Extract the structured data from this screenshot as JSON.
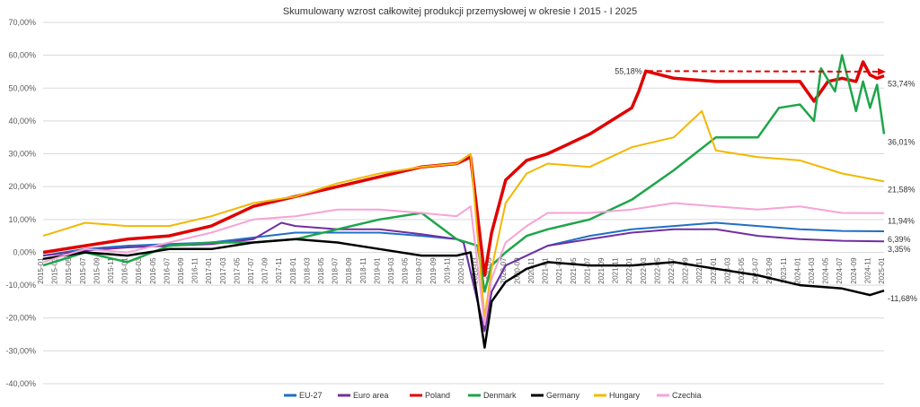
{
  "chart_data": {
    "type": "line",
    "title": "Skumulowany wzrost całkowitej produkcji przemysłowej w okresie I 2015 - I 2025",
    "xlabel": "",
    "ylabel": "",
    "ylim": [
      -40,
      70
    ],
    "y_ticks": [
      "70,00%",
      "60,00%",
      "50,00%",
      "40,00%",
      "30,00%",
      "20,00%",
      "10,00%",
      "0,00%",
      "-10,00%",
      "-20,00%",
      "-30,00%",
      "-40,00%"
    ],
    "y_tick_values": [
      70,
      60,
      50,
      40,
      30,
      20,
      10,
      0,
      -10,
      -20,
      -30,
      -40
    ],
    "x_range": [
      "2015-01",
      "2025-01"
    ],
    "x_tick_labels": [
      "2015-01",
      "2015-03",
      "2015-05",
      "2015-07",
      "2015-09",
      "2015-11",
      "2016-01",
      "2016-03",
      "2016-05",
      "2016-07",
      "2016-09",
      "2016-11",
      "2017-01",
      "2017-03",
      "2017-05",
      "2017-07",
      "2017-09",
      "2017-11",
      "2018-01",
      "2018-03",
      "2018-05",
      "2018-07",
      "2018-09",
      "2018-11",
      "2019-01",
      "2019-03",
      "2019-05",
      "2019-07",
      "2019-09",
      "2019-11",
      "2020-01",
      "2020-03",
      "2020-05",
      "2020-07",
      "2020-09",
      "2020-11",
      "2021-01",
      "2021-03",
      "2021-05",
      "2021-07",
      "2021-09",
      "2021-11",
      "2022-01",
      "2022-03",
      "2022-05",
      "2022-07",
      "2022-09",
      "2022-11",
      "2023-01",
      "2023-03",
      "2023-05",
      "2023-07",
      "2023-09",
      "2023-11",
      "2024-01",
      "2024-03",
      "2024-05",
      "2024-07",
      "2024-09",
      "2024-11",
      "2025-01"
    ],
    "grid": true,
    "legend_position": "bottom",
    "series": [
      {
        "name": "EU-27",
        "color": "#1f6fc5",
        "end_label": "6,39%",
        "points": [
          [
            "2015-01",
            -1
          ],
          [
            "2015-07",
            1
          ],
          [
            "2016-01",
            2
          ],
          [
            "2016-07",
            2.5
          ],
          [
            "2017-01",
            3
          ],
          [
            "2017-07",
            4.5
          ],
          [
            "2018-01",
            6
          ],
          [
            "2018-07",
            6
          ],
          [
            "2019-01",
            6
          ],
          [
            "2019-07",
            5
          ],
          [
            "2019-12",
            4
          ],
          [
            "2020-01",
            3
          ],
          [
            "2020-04",
            -24
          ],
          [
            "2020-05",
            -12
          ],
          [
            "2020-07",
            -4
          ],
          [
            "2020-10",
            -1
          ],
          [
            "2021-01",
            2
          ],
          [
            "2021-07",
            5
          ],
          [
            "2022-01",
            7
          ],
          [
            "2022-07",
            8
          ],
          [
            "2023-01",
            9
          ],
          [
            "2023-07",
            8
          ],
          [
            "2024-01",
            7
          ],
          [
            "2024-07",
            6.5
          ],
          [
            "2025-01",
            6.39
          ]
        ]
      },
      {
        "name": "Euro area",
        "color": "#7030a0",
        "end_label": "3,35%",
        "points": [
          [
            "2015-01",
            -1
          ],
          [
            "2015-07",
            0.5
          ],
          [
            "2016-01",
            1.5
          ],
          [
            "2016-07",
            2
          ],
          [
            "2017-01",
            2.5
          ],
          [
            "2017-07",
            4
          ],
          [
            "2017-11",
            9
          ],
          [
            "2018-01",
            8
          ],
          [
            "2018-07",
            7
          ],
          [
            "2019-01",
            7
          ],
          [
            "2019-07",
            5.5
          ],
          [
            "2019-12",
            4
          ],
          [
            "2020-01",
            3
          ],
          [
            "2020-04",
            -24
          ],
          [
            "2020-05",
            -12
          ],
          [
            "2020-07",
            -4
          ],
          [
            "2020-10",
            -1
          ],
          [
            "2021-01",
            2
          ],
          [
            "2021-07",
            4
          ],
          [
            "2022-01",
            6
          ],
          [
            "2022-07",
            7
          ],
          [
            "2023-01",
            7
          ],
          [
            "2023-07",
            5
          ],
          [
            "2024-01",
            4
          ],
          [
            "2024-07",
            3.5
          ],
          [
            "2025-01",
            3.35
          ]
        ]
      },
      {
        "name": "Poland",
        "color": "#e00000",
        "end_label": "53,74%",
        "points": [
          [
            "2015-01",
            0
          ],
          [
            "2015-07",
            2
          ],
          [
            "2016-01",
            4
          ],
          [
            "2016-07",
            5
          ],
          [
            "2017-01",
            8
          ],
          [
            "2017-07",
            14
          ],
          [
            "2018-01",
            17
          ],
          [
            "2018-07",
            20
          ],
          [
            "2019-01",
            23
          ],
          [
            "2019-07",
            26
          ],
          [
            "2019-12",
            27
          ],
          [
            "2020-02",
            29
          ],
          [
            "2020-04",
            -7
          ],
          [
            "2020-05",
            6
          ],
          [
            "2020-07",
            22
          ],
          [
            "2020-10",
            28
          ],
          [
            "2021-01",
            30
          ],
          [
            "2021-07",
            36
          ],
          [
            "2022-01",
            44
          ],
          [
            "2022-02",
            49
          ],
          [
            "2022-03",
            55.18
          ],
          [
            "2022-07",
            53
          ],
          [
            "2023-01",
            52
          ],
          [
            "2023-07",
            52
          ],
          [
            "2024-01",
            52
          ],
          [
            "2024-03",
            46
          ],
          [
            "2024-05",
            52
          ],
          [
            "2024-07",
            53
          ],
          [
            "2024-09",
            52
          ],
          [
            "2024-10",
            58
          ],
          [
            "2024-11",
            54
          ],
          [
            "2024-12",
            53
          ],
          [
            "2025-01",
            53.74
          ]
        ]
      },
      {
        "name": "Denmark",
        "color": "#1ea54a",
        "end_label": "36,01%",
        "points": [
          [
            "2015-01",
            -4
          ],
          [
            "2015-07",
            0
          ],
          [
            "2016-01",
            -3
          ],
          [
            "2016-07",
            2
          ],
          [
            "2017-01",
            3
          ],
          [
            "2017-07",
            3
          ],
          [
            "2018-01",
            4
          ],
          [
            "2018-07",
            7
          ],
          [
            "2019-01",
            10
          ],
          [
            "2019-07",
            12
          ],
          [
            "2019-12",
            4
          ],
          [
            "2020-03",
            2
          ],
          [
            "2020-04",
            -12
          ],
          [
            "2020-05",
            -4
          ],
          [
            "2020-07",
            0
          ],
          [
            "2020-10",
            5
          ],
          [
            "2021-01",
            7
          ],
          [
            "2021-07",
            10
          ],
          [
            "2022-01",
            16
          ],
          [
            "2022-07",
            25
          ],
          [
            "2022-10",
            30
          ],
          [
            "2023-01",
            35
          ],
          [
            "2023-07",
            35
          ],
          [
            "2023-10",
            44
          ],
          [
            "2024-01",
            45
          ],
          [
            "2024-03",
            40
          ],
          [
            "2024-04",
            56
          ],
          [
            "2024-06",
            49
          ],
          [
            "2024-07",
            60
          ],
          [
            "2024-09",
            43
          ],
          [
            "2024-10",
            52
          ],
          [
            "2024-11",
            44
          ],
          [
            "2024-12",
            51
          ],
          [
            "2025-01",
            36.01
          ]
        ]
      },
      {
        "name": "Germany",
        "color": "#000000",
        "end_label": "-11,68%",
        "points": [
          [
            "2015-01",
            -2
          ],
          [
            "2015-07",
            0
          ],
          [
            "2016-01",
            -1
          ],
          [
            "2016-07",
            1
          ],
          [
            "2017-01",
            1
          ],
          [
            "2017-07",
            3
          ],
          [
            "2018-01",
            4
          ],
          [
            "2018-07",
            3
          ],
          [
            "2019-01",
            1
          ],
          [
            "2019-07",
            -1
          ],
          [
            "2019-12",
            -1
          ],
          [
            "2020-02",
            0
          ],
          [
            "2020-04",
            -29
          ],
          [
            "2020-05",
            -15
          ],
          [
            "2020-07",
            -9
          ],
          [
            "2020-10",
            -5
          ],
          [
            "2021-01",
            -3
          ],
          [
            "2021-07",
            -4
          ],
          [
            "2022-01",
            -4
          ],
          [
            "2022-07",
            -3
          ],
          [
            "2023-01",
            -5
          ],
          [
            "2023-07",
            -7
          ],
          [
            "2024-01",
            -10
          ],
          [
            "2024-07",
            -11
          ],
          [
            "2024-11",
            -13
          ],
          [
            "2025-01",
            -11.68
          ]
        ]
      },
      {
        "name": "Hungary",
        "color": "#f2b800",
        "end_label": "21,58%",
        "points": [
          [
            "2015-01",
            5
          ],
          [
            "2015-07",
            9
          ],
          [
            "2016-01",
            8
          ],
          [
            "2016-07",
            8
          ],
          [
            "2017-01",
            11
          ],
          [
            "2017-07",
            15
          ],
          [
            "2018-01",
            17
          ],
          [
            "2018-07",
            21
          ],
          [
            "2019-01",
            24
          ],
          [
            "2019-07",
            26
          ],
          [
            "2019-12",
            27
          ],
          [
            "2020-02",
            30
          ],
          [
            "2020-04",
            -20
          ],
          [
            "2020-05",
            -5
          ],
          [
            "2020-07",
            15
          ],
          [
            "2020-10",
            24
          ],
          [
            "2021-01",
            27
          ],
          [
            "2021-07",
            26
          ],
          [
            "2022-01",
            32
          ],
          [
            "2022-07",
            35
          ],
          [
            "2022-11",
            43
          ],
          [
            "2023-01",
            31
          ],
          [
            "2023-07",
            29
          ],
          [
            "2024-01",
            28
          ],
          [
            "2024-07",
            24
          ],
          [
            "2025-01",
            21.58
          ]
        ]
      },
      {
        "name": "Czechia",
        "color": "#f6a3d6",
        "end_label": "11,94%",
        "points": [
          [
            "2015-01",
            -3
          ],
          [
            "2015-07",
            1
          ],
          [
            "2016-01",
            0
          ],
          [
            "2016-07",
            3
          ],
          [
            "2017-01",
            6
          ],
          [
            "2017-07",
            10
          ],
          [
            "2018-01",
            11
          ],
          [
            "2018-07",
            13
          ],
          [
            "2019-01",
            13
          ],
          [
            "2019-07",
            12
          ],
          [
            "2019-12",
            11
          ],
          [
            "2020-02",
            14
          ],
          [
            "2020-04",
            -22
          ],
          [
            "2020-05",
            -8
          ],
          [
            "2020-07",
            3
          ],
          [
            "2020-10",
            8
          ],
          [
            "2021-01",
            12
          ],
          [
            "2021-07",
            12
          ],
          [
            "2022-01",
            13
          ],
          [
            "2022-07",
            15
          ],
          [
            "2023-01",
            14
          ],
          [
            "2023-07",
            13
          ],
          [
            "2024-01",
            14
          ],
          [
            "2024-07",
            12
          ],
          [
            "2025-01",
            11.94
          ]
        ]
      }
    ],
    "annotations": [
      {
        "text": "55,18%",
        "x": "2022-03",
        "y": 55.18
      },
      {
        "type": "trend-arrow",
        "color": "#e00000",
        "from": [
          "2022-03",
          55.18
        ],
        "to": [
          "2025-01",
          55.0
        ]
      }
    ]
  }
}
